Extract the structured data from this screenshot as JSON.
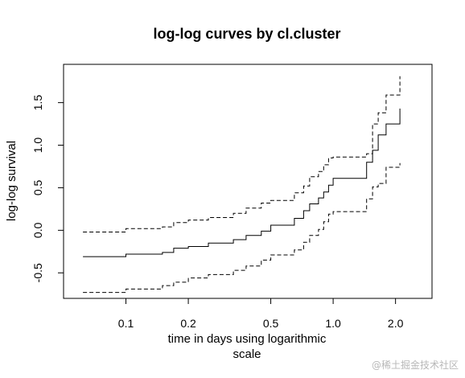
{
  "chart_data": {
    "type": "line",
    "title": "log-log curves by cl.cluster",
    "xlabel_line1": "time in days using logarithmic",
    "xlabel_line2": "scale",
    "ylabel": "log-log survival",
    "x_scale": "log",
    "xlim": [
      0.05,
      3.0
    ],
    "ylim": [
      -0.8,
      1.95
    ],
    "x_ticks": [
      0.1,
      0.2,
      0.5,
      1.0,
      2.0
    ],
    "x_tick_labels": [
      "0.1",
      "0.2",
      "0.5",
      "1.0",
      "2.0"
    ],
    "y_ticks": [
      -0.5,
      0.0,
      0.5,
      1.0,
      1.5
    ],
    "y_tick_labels": [
      "-0.5",
      "0.0",
      "0.5",
      "1.0",
      "1.5"
    ],
    "grid": false,
    "legend": "none",
    "series": [
      {
        "style": "solid",
        "step": "post",
        "x": [
          0.062,
          0.1,
          0.15,
          0.17,
          0.2,
          0.25,
          0.33,
          0.38,
          0.45,
          0.5,
          0.65,
          0.72,
          0.77,
          0.85,
          0.9,
          0.95,
          1.0,
          1.45,
          1.55,
          1.65,
          1.8,
          2.1
        ],
        "y": [
          -0.31,
          -0.28,
          -0.26,
          -0.21,
          -0.19,
          -0.15,
          -0.11,
          -0.06,
          -0.01,
          0.06,
          0.14,
          0.23,
          0.31,
          0.38,
          0.45,
          0.53,
          0.61,
          0.8,
          0.94,
          1.12,
          1.25,
          1.43
        ]
      },
      {
        "style": "dashed",
        "step": "post",
        "x": [
          0.062,
          0.1,
          0.15,
          0.17,
          0.2,
          0.25,
          0.33,
          0.38,
          0.45,
          0.5,
          0.65,
          0.72,
          0.77,
          0.85,
          0.9,
          0.95,
          1.0,
          1.45,
          1.55,
          1.65,
          1.8,
          2.1
        ],
        "y": [
          -0.02,
          0.02,
          0.04,
          0.09,
          0.12,
          0.15,
          0.2,
          0.26,
          0.32,
          0.35,
          0.44,
          0.52,
          0.63,
          0.69,
          0.77,
          0.85,
          0.86,
          0.9,
          1.25,
          1.38,
          1.59,
          1.81
        ]
      },
      {
        "style": "dashed",
        "step": "post",
        "x": [
          0.062,
          0.1,
          0.15,
          0.17,
          0.2,
          0.25,
          0.33,
          0.38,
          0.45,
          0.5,
          0.65,
          0.72,
          0.77,
          0.85,
          0.9,
          0.95,
          1.0,
          1.45,
          1.55,
          1.65,
          1.8,
          2.1
        ],
        "y": [
          -0.73,
          -0.69,
          -0.65,
          -0.61,
          -0.56,
          -0.52,
          -0.47,
          -0.42,
          -0.35,
          -0.29,
          -0.23,
          -0.14,
          -0.06,
          0.01,
          0.1,
          0.19,
          0.22,
          0.37,
          0.51,
          0.55,
          0.74,
          0.79
        ]
      }
    ]
  },
  "watermark": "@稀土掘金技术社区"
}
